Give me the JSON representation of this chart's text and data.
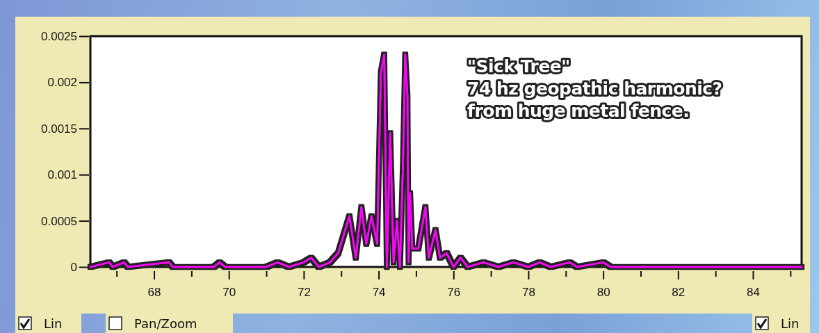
{
  "chart_data": {
    "type": "line",
    "x": [
      66.3,
      66.8,
      66.9,
      67.2,
      67.3,
      68.4,
      68.5,
      69.6,
      69.75,
      69.9,
      70.5,
      71.0,
      71.3,
      71.6,
      72.0,
      72.2,
      72.4,
      72.7,
      72.92,
      73.22,
      73.39,
      73.54,
      73.67,
      73.81,
      73.96,
      74.06,
      74.15,
      74.22,
      74.31,
      74.4,
      74.49,
      74.57,
      74.65,
      74.71,
      74.77,
      74.8,
      74.84,
      74.9,
      75.06,
      75.25,
      75.34,
      75.52,
      75.64,
      75.82,
      76.0,
      76.19,
      76.38,
      76.8,
      77.2,
      77.6,
      78.0,
      78.3,
      78.6,
      79.1,
      79.3,
      80.0,
      80.2,
      85.3
    ],
    "series": [
      {
        "color": "#ff00ff",
        "values": [
          0,
          5e-05,
          0,
          5e-05,
          0,
          5e-05,
          0,
          0,
          5e-05,
          0,
          0,
          0,
          5e-05,
          0,
          5e-05,
          0.0001,
          0,
          5e-05,
          0.00015,
          0.00055,
          0.0001,
          0.00065,
          0.00025,
          0.00055,
          0.00025,
          0.0021,
          0.0023,
          0,
          0.00145,
          5e-05,
          0.0005,
          0,
          0.0011,
          0.0023,
          0.00185,
          5e-05,
          0.0008,
          0.0002,
          0.0002,
          0.00065,
          0.0001,
          0.0004,
          0.0001,
          0.00015,
          0,
          0.0001,
          0,
          5e-05,
          0,
          5e-05,
          0,
          5e-05,
          0,
          5e-05,
          0,
          5e-05,
          0,
          0
        ]
      }
    ],
    "xlim": [
      66.3,
      85.3
    ],
    "xticks": [
      {
        "value": 67,
        "label": null
      },
      68,
      {
        "value": 69,
        "label": null
      },
      70,
      {
        "value": 71,
        "label": null
      },
      72,
      {
        "value": 73,
        "label": null
      },
      74,
      {
        "value": 75,
        "label": null
      },
      76,
      {
        "value": 77,
        "label": null
      },
      78,
      {
        "value": 79,
        "label": null
      },
      80,
      {
        "value": 81,
        "label": null
      },
      82,
      {
        "value": 83,
        "label": null
      },
      84,
      {
        "value": 85,
        "label": null
      }
    ],
    "ylim": [
      0,
      0.0025
    ],
    "yticks": [
      0,
      0.0005,
      0.001,
      0.0015,
      0.002,
      0.0025
    ],
    "grid": false,
    "marker": "none",
    "line_style": "solid",
    "annotations": [
      "\"Sick Tree\"\n74 hz geopathic harmonic?\nfrom huge metal fence.",
      "Lin",
      "Pan/Zoom",
      "Lin"
    ]
  }
}
